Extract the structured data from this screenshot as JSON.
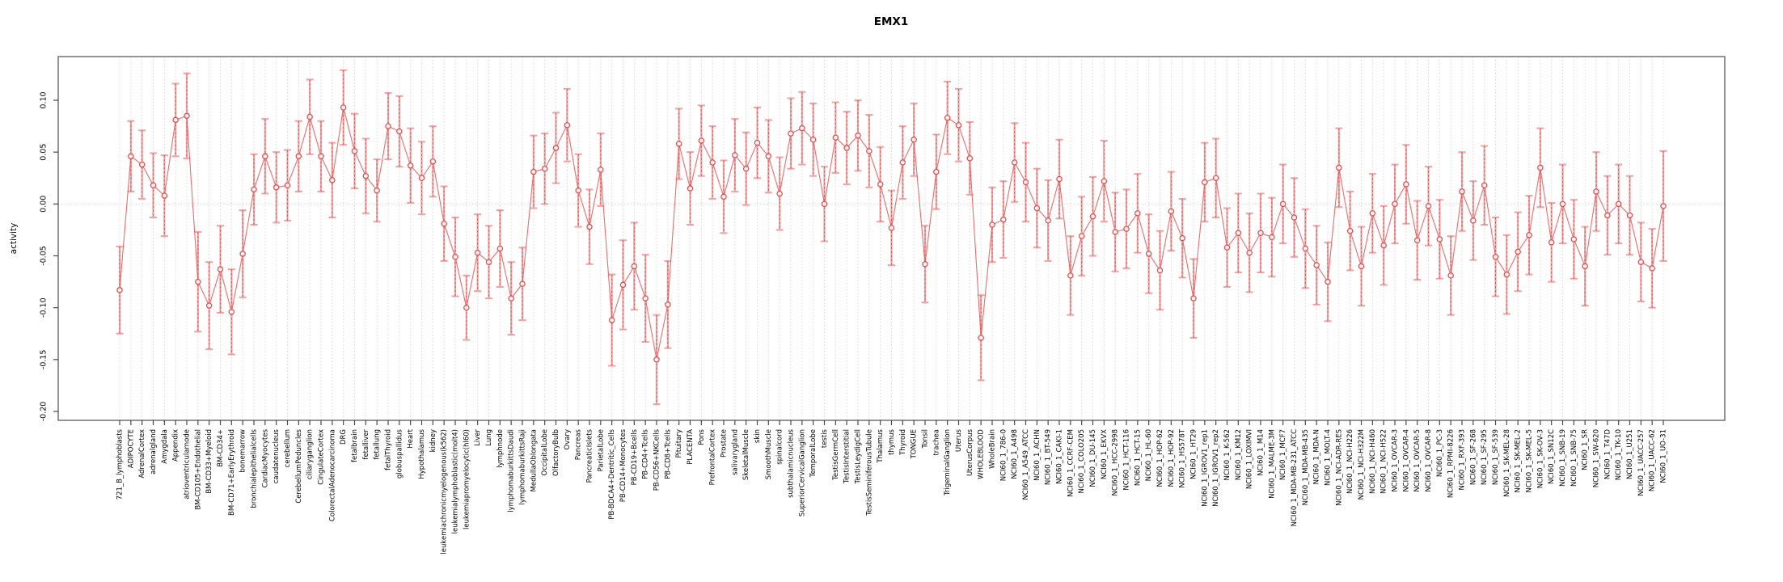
{
  "title": "EMX1",
  "ylabel": "activity",
  "colors": {
    "point": "#e04f4f",
    "line": "#ea5b5b",
    "errorbar": "#f5a0a0",
    "errorbar_dash": "#e04f4f",
    "grid": "#d8d8d8",
    "zero_line": "#d8d8d8",
    "frame": "#7a7a7a",
    "tick": "#4a4a4a",
    "label_text": "#000000"
  },
  "chart_data": {
    "type": "scatter",
    "title": "EMX1",
    "xlabel": "",
    "ylabel": "activity",
    "ylim": [
      -0.2086,
      0.1421
    ],
    "yticks": [
      0.1,
      0.05,
      0.0,
      -0.05,
      -0.1,
      -0.15,
      -0.2
    ],
    "grid": "vertical dotted line per category, dotted horizontal line at 0",
    "legend_position": "none",
    "error_bars": true,
    "marker": "open-circle",
    "categories": [
      "721_B_lymphoblasts",
      "ADIPOCYTE",
      "AdrenalCortex",
      "adrenalgland",
      "Amygdala",
      "Appendix",
      "atrioventricularnode",
      "BM-CD105+Endothelial",
      "BM-CD33+Myeloid",
      "BM-CD34+",
      "BM-CD71+EarlyErythroid",
      "bonemarrow",
      "bronchialepithelialcells",
      "CardiacMyocytes",
      "caudatenucleus",
      "cerebellum",
      "CerebellumPeduncles",
      "ciliaryganglion",
      "CingulateCortex",
      "ColorectalAdenocarcinoma",
      "DRG",
      "fetalbrain",
      "fetalliver",
      "fetallung",
      "fetalThyroid",
      "globuspallidus",
      "Heart",
      "Hypothalamus",
      "kidney",
      "leukemiachronicmyelogenous(k562)",
      "leukemialymphoblastic(molt4)",
      "leukemiapromyelocytic(hl60)",
      "Liver",
      "Lung",
      "lymphnode",
      "lymphomaburkittsDaudi",
      "lymphomaburkittsRaji",
      "MedullaOblongata",
      "OccipitalLobe",
      "OlfactoryBulb",
      "Ovary",
      "Pancreas",
      "PancreaticIslets",
      "ParietalLobe",
      "PB-BDCA4+Dentritic_Cells",
      "PB-CD14+Monocytes",
      "PB-CD19+Bcells",
      "PB-CD4+Tcells",
      "PB-CD56+NKCells",
      "PB-CD8+Tcells",
      "Pituitary",
      "PLACENTA",
      "Pons",
      "PrefrontalCortex",
      "Prostate",
      "salivarygland",
      "SkeletalMuscle",
      "skin",
      "SmoothMuscle",
      "spinalcord",
      "subthalamicnucleus",
      "SuperiorCervicalGanglion",
      "TemporalLobe",
      "testis",
      "TestisGermCell",
      "TestisInterstitial",
      "TestisLeydigCell",
      "TestisSeminiferousTubule",
      "Thalamus",
      "thymus",
      "Thyroid",
      "TONGUE",
      "Tonsil",
      "trachea",
      "TrigeminalGanglion",
      "Uterus",
      "UterusCorpus",
      "WHOLEBLOOD",
      "WholeBrain",
      "NCI60_1_786-0",
      "NCI60_1_A498",
      "NCI60_1_A549_ATCC",
      "NCI60_1_ACHN",
      "NCI60_1_BT-549",
      "NCI60_1_CAKI-1",
      "NCI60_1_CCRF-CEM",
      "NCI60_1_COLO205",
      "NCI60_1_DU-145",
      "NCI60_1_EKVX",
      "NCI60_1_HCC-2998",
      "NCI60_1_HCT-116",
      "NCI60_1_HCT-15",
      "NCI60_1_HL-60",
      "NCI60_1_HOP-62",
      "NCI60_1_HOP-92",
      "NCI60_1_HS578T",
      "NCI60_1_HT29",
      "NCI60_1_IGROV1_rep1",
      "NCI60_1_IGROV1_rep2",
      "NCI60_1_K-562",
      "NCI60_1_KM12",
      "NCI60_1_LOXIMVI",
      "NCI60_1_M14",
      "NCI60_1_MALME-3M",
      "NCI60_1_MCF7",
      "NCI60_1_MDA-MB-231_ATCC",
      "NCI60_1_MDA-MB-435",
      "NCI60_1_MDA-N",
      "NCI60_1_MOLT-4",
      "NCI60_1_NCI-ADR-RES",
      "NCI60_1_NCI-H226",
      "NCI60_1_NCI-H322M",
      "NCI60_1_NCI-H460",
      "NCI60_1_NCI-H522",
      "NCI60_1_OVCAR-3",
      "NCI60_1_OVCAR-4",
      "NCI60_1_OVCAR-5",
      "NCI60_1_OVCAR-8",
      "NCI60_1_PC-3",
      "NCI60_1_RPMI-8226",
      "NCI60_1_RXF-393",
      "NCI60_1_SF-268",
      "NCI60_1_SF-295",
      "NCI60_1_SF-539",
      "NCI60_1_SK-MEL-28",
      "NCI60_1_SK-MEL-2",
      "NCI60_1_SK-MEL-5",
      "NCI60_1_SK-OV-3",
      "NCI60_1_SN12C",
      "NCI60_1_SNB-19",
      "NCI60_1_SNB-75",
      "NCI60_1_SR",
      "NCI60_1_SW-620",
      "NCI60_1_T47D",
      "NCI60_1_TK-10",
      "NCI60_1_U251",
      "NCI60_1_UACC-257",
      "NCI60_1_UACC-62",
      "NCI60_1_UO-31"
    ],
    "values": [
      -0.083,
      0.046,
      0.038,
      0.018,
      0.008,
      0.081,
      0.085,
      -0.075,
      -0.098,
      -0.063,
      -0.104,
      -0.048,
      0.014,
      0.046,
      0.016,
      0.018,
      0.046,
      0.084,
      0.046,
      0.023,
      0.093,
      0.051,
      0.027,
      0.013,
      0.075,
      0.07,
      0.037,
      0.025,
      0.041,
      -0.019,
      -0.051,
      -0.1,
      -0.047,
      -0.056,
      -0.043,
      -0.091,
      -0.077,
      0.031,
      0.034,
      0.054,
      0.076,
      0.013,
      -0.022,
      0.033,
      -0.112,
      -0.078,
      -0.06,
      -0.091,
      -0.15,
      -0.097,
      0.058,
      0.015,
      0.061,
      0.04,
      0.007,
      0.047,
      0.034,
      0.059,
      0.046,
      0.01,
      0.068,
      0.073,
      0.062,
      0.0,
      0.064,
      0.054,
      0.066,
      0.051,
      0.019,
      -0.023,
      0.04,
      0.062,
      -0.058,
      0.031,
      0.083,
      0.076,
      0.044,
      -0.129,
      -0.02,
      -0.015,
      0.04,
      0.021,
      -0.004,
      -0.016,
      0.024,
      -0.069,
      -0.031,
      -0.012,
      0.022,
      -0.027,
      -0.024,
      -0.009,
      -0.048,
      -0.064,
      -0.007,
      -0.033,
      -0.091,
      0.021,
      0.025,
      -0.042,
      -0.028,
      -0.047,
      -0.028,
      -0.032,
      0.0,
      -0.013,
      -0.043,
      -0.059,
      -0.075,
      0.035,
      -0.026,
      -0.06,
      -0.009,
      -0.04,
      0.0,
      0.019,
      -0.035,
      -0.002,
      -0.034,
      -0.069,
      0.012,
      -0.016,
      0.018,
      -0.051,
      -0.068,
      -0.046,
      -0.03,
      0.035,
      -0.037,
      0.0,
      -0.034,
      -0.06,
      0.012,
      -0.011,
      0.0,
      -0.011,
      -0.056,
      -0.062,
      -0.002
    ],
    "errors": [
      0.042,
      0.034,
      0.033,
      0.031,
      0.039,
      0.035,
      0.041,
      0.048,
      0.042,
      0.042,
      0.041,
      0.042,
      0.034,
      0.036,
      0.034,
      0.034,
      0.034,
      0.036,
      0.034,
      0.036,
      0.036,
      0.036,
      0.036,
      0.03,
      0.032,
      0.034,
      0.036,
      0.035,
      0.034,
      0.036,
      0.038,
      0.031,
      0.037,
      0.035,
      0.037,
      0.035,
      0.035,
      0.035,
      0.034,
      0.034,
      0.035,
      0.035,
      0.036,
      0.035,
      0.044,
      0.043,
      0.042,
      0.042,
      0.043,
      0.042,
      0.034,
      0.035,
      0.034,
      0.035,
      0.035,
      0.035,
      0.035,
      0.034,
      0.035,
      0.035,
      0.034,
      0.035,
      0.035,
      0.036,
      0.034,
      0.035,
      0.034,
      0.035,
      0.036,
      0.036,
      0.035,
      0.035,
      0.037,
      0.036,
      0.035,
      0.035,
      0.035,
      0.041,
      0.036,
      0.037,
      0.038,
      0.038,
      0.038,
      0.039,
      0.038,
      0.038,
      0.038,
      0.038,
      0.039,
      0.038,
      0.038,
      0.038,
      0.038,
      0.038,
      0.038,
      0.038,
      0.038,
      0.038,
      0.038,
      0.038,
      0.038,
      0.038,
      0.038,
      0.038,
      0.038,
      0.038,
      0.038,
      0.038,
      0.038,
      0.038,
      0.038,
      0.038,
      0.038,
      0.038,
      0.038,
      0.038,
      0.038,
      0.038,
      0.038,
      0.038,
      0.038,
      0.038,
      0.038,
      0.038,
      0.038,
      0.038,
      0.038,
      0.038,
      0.038,
      0.038,
      0.038,
      0.038,
      0.038,
      0.038,
      0.038,
      0.038,
      0.038,
      0.038,
      0.053
    ]
  }
}
